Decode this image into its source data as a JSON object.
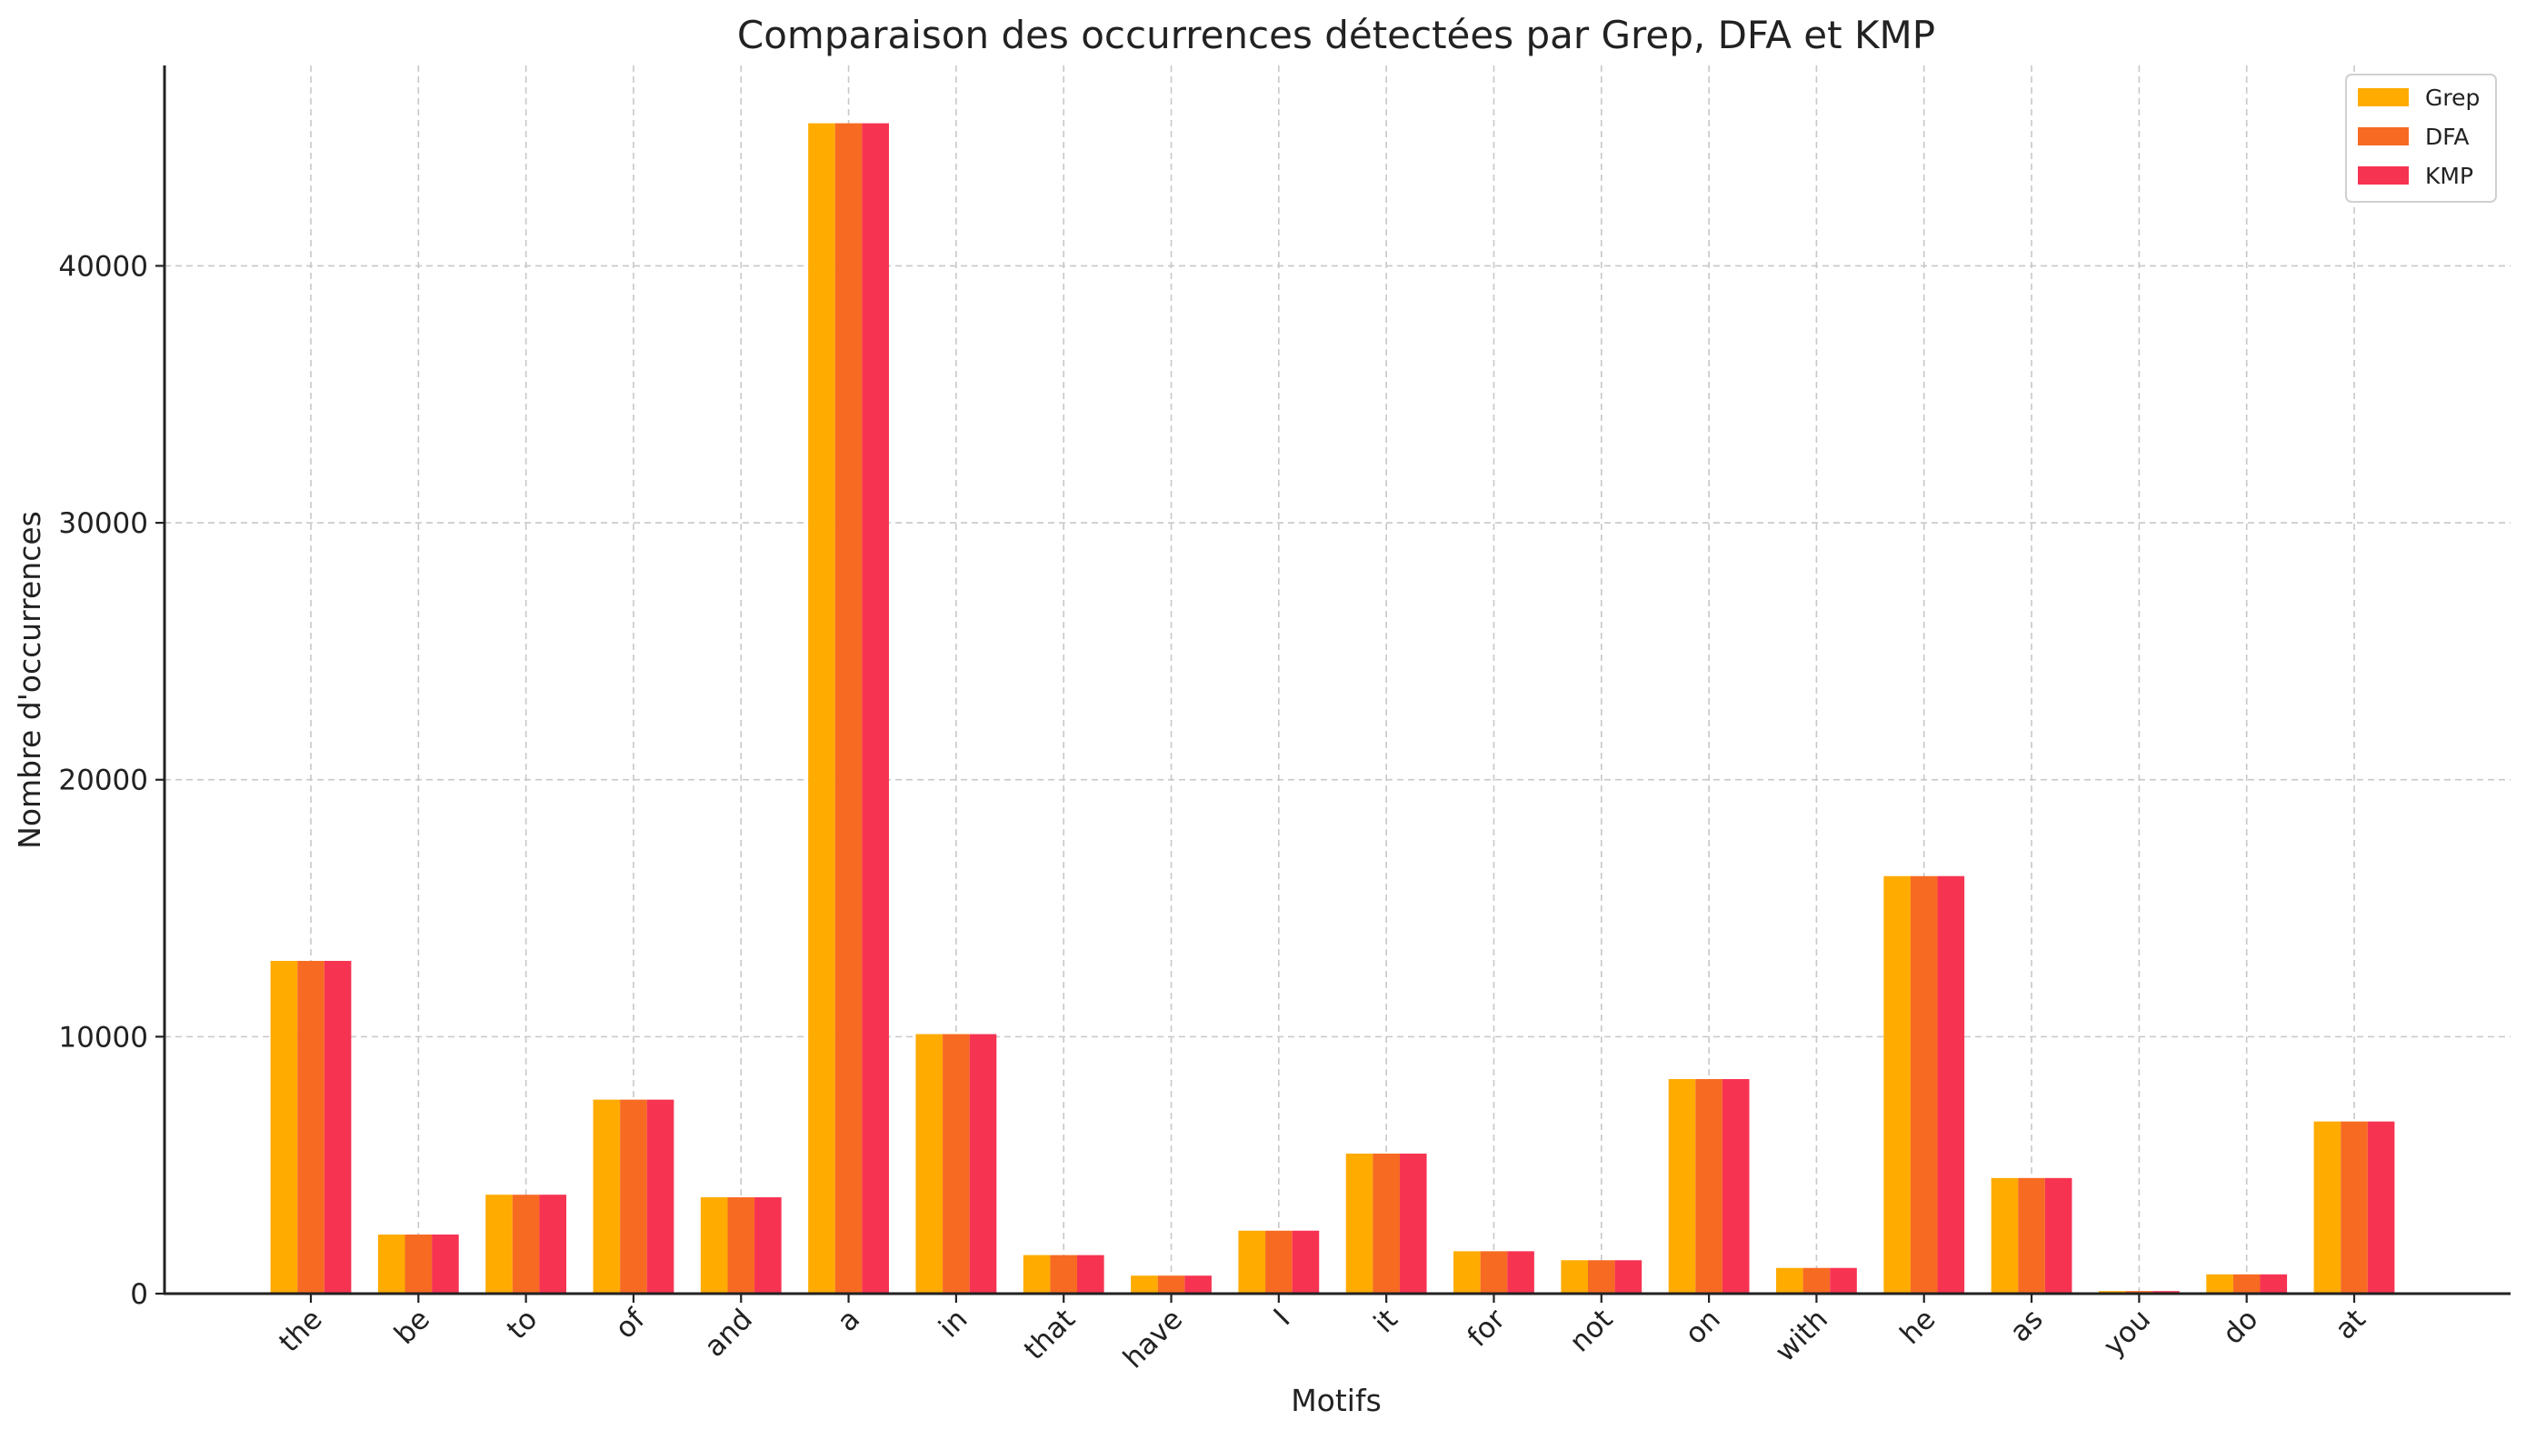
{
  "chart_data": {
    "type": "bar",
    "title": "Comparaison des occurrences détectées par Grep, DFA et KMP",
    "xlabel": "Motifs",
    "ylabel": "Nombre d'occurrences",
    "categories": [
      "the",
      "be",
      "to",
      "of",
      "and",
      "a",
      "in",
      "that",
      "have",
      "I",
      "it",
      "for",
      "not",
      "on",
      "with",
      "he",
      "as",
      "you",
      "do",
      "at"
    ],
    "series": [
      {
        "name": "Grep",
        "color": "#FFAB00",
        "values": [
          12950,
          2300,
          3850,
          7550,
          3750,
          45550,
          10100,
          1500,
          700,
          2450,
          5450,
          1650,
          1300,
          8350,
          1000,
          16250,
          4500,
          100,
          750,
          6700
        ]
      },
      {
        "name": "DFA",
        "color": "#F76A22",
        "values": [
          12950,
          2300,
          3850,
          7550,
          3750,
          45550,
          10100,
          1500,
          700,
          2450,
          5450,
          1650,
          1300,
          8350,
          1000,
          16250,
          4500,
          100,
          750,
          6700
        ]
      },
      {
        "name": "KMP",
        "color": "#F73352",
        "values": [
          12950,
          2300,
          3850,
          7550,
          3750,
          45550,
          10100,
          1500,
          700,
          2450,
          5450,
          1650,
          1300,
          8350,
          1000,
          16250,
          4500,
          100,
          750,
          6700
        ]
      }
    ],
    "ylim": [
      0,
      47800
    ],
    "yticks": [
      0,
      10000,
      20000,
      30000,
      40000
    ],
    "grid": true,
    "legend_position": "top-right"
  }
}
